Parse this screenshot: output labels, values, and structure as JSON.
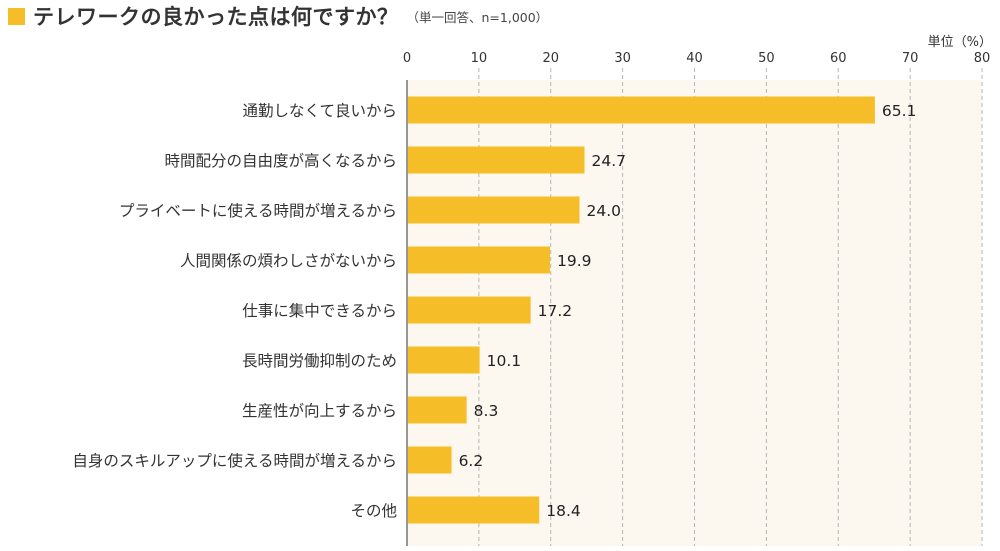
{
  "header": {
    "title": "テレワークの良かった点は何ですか？",
    "note": "（単一回答、n=1,000）",
    "unit": "単位（%）"
  },
  "colors": {
    "bar": "#f5be28",
    "plot_background": "#fdf8ef",
    "grid": "#b5b5b5",
    "axis": "#555555"
  },
  "chart_data": {
    "type": "bar",
    "orientation": "horizontal",
    "categories": [
      "通勤しなくて良いから",
      "時間配分の自由度が高くなるから",
      "プライベートに使える時間が増えるから",
      "人間関係の煩わしさがないから",
      "仕事に集中できるから",
      "長時間労働抑制のため",
      "生産性が向上するから",
      "自身のスキルアップに使える時間が増えるから",
      "その他"
    ],
    "values": [
      65.1,
      24.7,
      24.0,
      19.9,
      17.2,
      10.1,
      8.3,
      6.2,
      18.4
    ],
    "value_labels": [
      "65.1",
      "24.7",
      "24.0",
      "19.9",
      "17.2",
      "10.1",
      "8.3",
      "6.2",
      "18.4"
    ],
    "xlim": [
      0,
      80
    ],
    "ticks": [
      0,
      10,
      20,
      30,
      40,
      50,
      60,
      70,
      80
    ],
    "tick_labels": [
      "0",
      "10",
      "20",
      "30",
      "40",
      "50",
      "60",
      "70",
      "80"
    ],
    "grid": true,
    "grid_style": "dashed"
  }
}
